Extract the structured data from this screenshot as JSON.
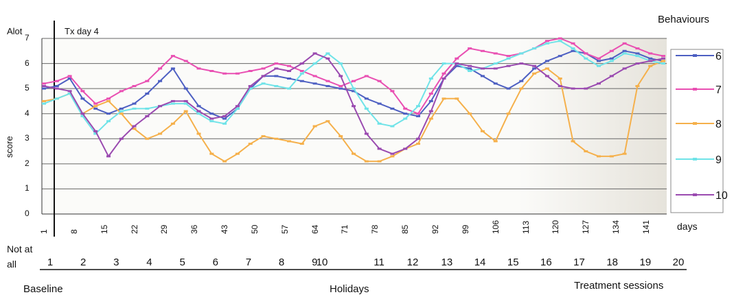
{
  "chart_data": {
    "type": "line",
    "legend_title": "Behaviours",
    "ylabel": "score",
    "y_top_label": "Alot",
    "y_bottom_label": [
      "Not at",
      "all"
    ],
    "annotation": "Tx day 4",
    "xlabel": "days",
    "ylim": [
      0,
      7
    ],
    "yticks": [
      "0",
      "1",
      "2",
      "3",
      "4",
      "5",
      "6",
      "7"
    ],
    "xlim": [
      1,
      145
    ],
    "x_ticks": [
      "1",
      "8",
      "15",
      "22",
      "29",
      "36",
      "43",
      "50",
      "57",
      "64",
      "71",
      "78",
      "85",
      "92",
      "99",
      "106",
      "113",
      "120",
      "127",
      "134",
      "141"
    ],
    "sessions": [
      "1",
      "2",
      "3",
      "4",
      "5",
      "6",
      "7",
      "8",
      "9",
      "10",
      "11",
      "12",
      "13",
      "14",
      "15",
      "16",
      "17",
      "18",
      "19",
      "20"
    ],
    "phase_labels": [
      "Baseline",
      "Holidays",
      "Treatment sessions"
    ],
    "legend_placement": "right",
    "grid": true,
    "series": [
      {
        "name": "6",
        "color": "#4d5fc2",
        "x": [
          1,
          4,
          7,
          10,
          13,
          16,
          19,
          22,
          25,
          28,
          31,
          34,
          37,
          40,
          43,
          46,
          49,
          52,
          55,
          58,
          61,
          64,
          67,
          70,
          73,
          76,
          79,
          82,
          85,
          88,
          91,
          94,
          97,
          100,
          103,
          106,
          109,
          112,
          115,
          118,
          121,
          124,
          127,
          130,
          133,
          136,
          139,
          142,
          145
        ],
        "y": [
          5.0,
          5.1,
          5.4,
          4.6,
          4.2,
          4.0,
          4.2,
          4.4,
          4.8,
          5.3,
          5.8,
          5.0,
          4.3,
          4.0,
          3.8,
          4.2,
          5.0,
          5.5,
          5.5,
          5.4,
          5.3,
          5.2,
          5.1,
          5.0,
          4.9,
          4.6,
          4.4,
          4.2,
          4.0,
          3.9,
          4.5,
          5.4,
          5.9,
          5.8,
          5.5,
          5.2,
          5.0,
          5.3,
          5.8,
          6.1,
          6.3,
          6.5,
          6.4,
          6.1,
          6.2,
          6.5,
          6.4,
          6.2,
          6.1
        ]
      },
      {
        "name": "7",
        "color": "#e94fb2",
        "x": [
          1,
          4,
          7,
          10,
          13,
          16,
          19,
          22,
          25,
          28,
          31,
          34,
          37,
          40,
          43,
          46,
          49,
          52,
          55,
          58,
          61,
          64,
          67,
          70,
          73,
          76,
          79,
          82,
          85,
          88,
          91,
          94,
          97,
          100,
          103,
          106,
          109,
          112,
          115,
          118,
          121,
          124,
          127,
          130,
          133,
          136,
          139,
          142,
          145
        ],
        "y": [
          5.2,
          5.3,
          5.5,
          4.9,
          4.4,
          4.6,
          4.9,
          5.1,
          5.3,
          5.8,
          6.3,
          6.1,
          5.8,
          5.7,
          5.6,
          5.6,
          5.7,
          5.8,
          6.0,
          5.9,
          5.7,
          5.5,
          5.3,
          5.1,
          5.3,
          5.5,
          5.3,
          4.9,
          4.2,
          4.0,
          4.8,
          5.6,
          6.2,
          6.6,
          6.5,
          6.4,
          6.3,
          6.4,
          6.6,
          6.9,
          7.0,
          6.8,
          6.4,
          6.2,
          6.5,
          6.8,
          6.6,
          6.4,
          6.3
        ]
      },
      {
        "name": "8",
        "color": "#f5b04b",
        "x": [
          1,
          4,
          7,
          10,
          13,
          16,
          19,
          22,
          25,
          28,
          31,
          34,
          37,
          40,
          43,
          46,
          49,
          52,
          55,
          58,
          61,
          64,
          67,
          70,
          73,
          76,
          79,
          82,
          85,
          88,
          91,
          94,
          97,
          100,
          103,
          106,
          109,
          112,
          115,
          118,
          121,
          124,
          127,
          130,
          133,
          136,
          139,
          142,
          145
        ],
        "y": [
          4.5,
          4.6,
          4.8,
          4.0,
          4.3,
          4.5,
          4.0,
          3.4,
          3.0,
          3.2,
          3.6,
          4.1,
          3.2,
          2.4,
          2.1,
          2.4,
          2.8,
          3.1,
          3.0,
          2.9,
          2.8,
          3.5,
          3.7,
          3.1,
          2.4,
          2.1,
          2.1,
          2.3,
          2.6,
          2.8,
          3.8,
          4.6,
          4.6,
          4.0,
          3.3,
          2.9,
          4.0,
          5.0,
          5.6,
          5.8,
          5.4,
          2.9,
          2.5,
          2.3,
          2.3,
          2.4,
          5.1,
          5.9,
          6.1
        ]
      },
      {
        "name": "9",
        "color": "#6fe3e8",
        "x": [
          1,
          4,
          7,
          10,
          13,
          16,
          19,
          22,
          25,
          28,
          31,
          34,
          37,
          40,
          43,
          46,
          49,
          52,
          55,
          58,
          61,
          64,
          67,
          70,
          73,
          76,
          79,
          82,
          85,
          88,
          91,
          94,
          97,
          100,
          103,
          106,
          109,
          112,
          115,
          118,
          121,
          124,
          127,
          130,
          133,
          136,
          139,
          142,
          145
        ],
        "y": [
          4.4,
          4.6,
          4.8,
          3.9,
          3.2,
          3.7,
          4.1,
          4.2,
          4.2,
          4.3,
          4.4,
          4.4,
          4.0,
          3.7,
          3.6,
          4.2,
          5.0,
          5.2,
          5.1,
          5.0,
          5.6,
          6.0,
          6.4,
          6.0,
          5.0,
          4.2,
          3.6,
          3.5,
          3.8,
          4.3,
          5.4,
          6.0,
          6.0,
          5.7,
          5.8,
          6.0,
          6.2,
          6.4,
          6.6,
          6.8,
          6.9,
          6.6,
          6.2,
          5.9,
          6.1,
          6.4,
          6.3,
          6.1,
          6.0
        ]
      },
      {
        "name": "10",
        "color": "#9a4ab0",
        "x": [
          1,
          4,
          7,
          10,
          13,
          16,
          19,
          22,
          25,
          28,
          31,
          34,
          37,
          40,
          43,
          46,
          49,
          52,
          55,
          58,
          61,
          64,
          67,
          70,
          73,
          76,
          79,
          82,
          85,
          88,
          91,
          94,
          97,
          100,
          103,
          106,
          109,
          112,
          115,
          118,
          121,
          124,
          127,
          130,
          133,
          136,
          139,
          142,
          145
        ],
        "y": [
          5.1,
          5.0,
          4.9,
          4.0,
          3.3,
          2.3,
          3.0,
          3.5,
          3.9,
          4.3,
          4.5,
          4.5,
          4.1,
          3.8,
          3.9,
          4.3,
          5.1,
          5.5,
          5.8,
          5.7,
          6.0,
          6.4,
          6.2,
          5.5,
          4.3,
          3.2,
          2.6,
          2.4,
          2.6,
          3.0,
          4.1,
          5.4,
          6.0,
          5.9,
          5.8,
          5.8,
          5.9,
          6.0,
          5.9,
          5.5,
          5.1,
          5.0,
          5.0,
          5.2,
          5.5,
          5.8,
          6.0,
          6.1,
          6.2
        ]
      }
    ]
  }
}
